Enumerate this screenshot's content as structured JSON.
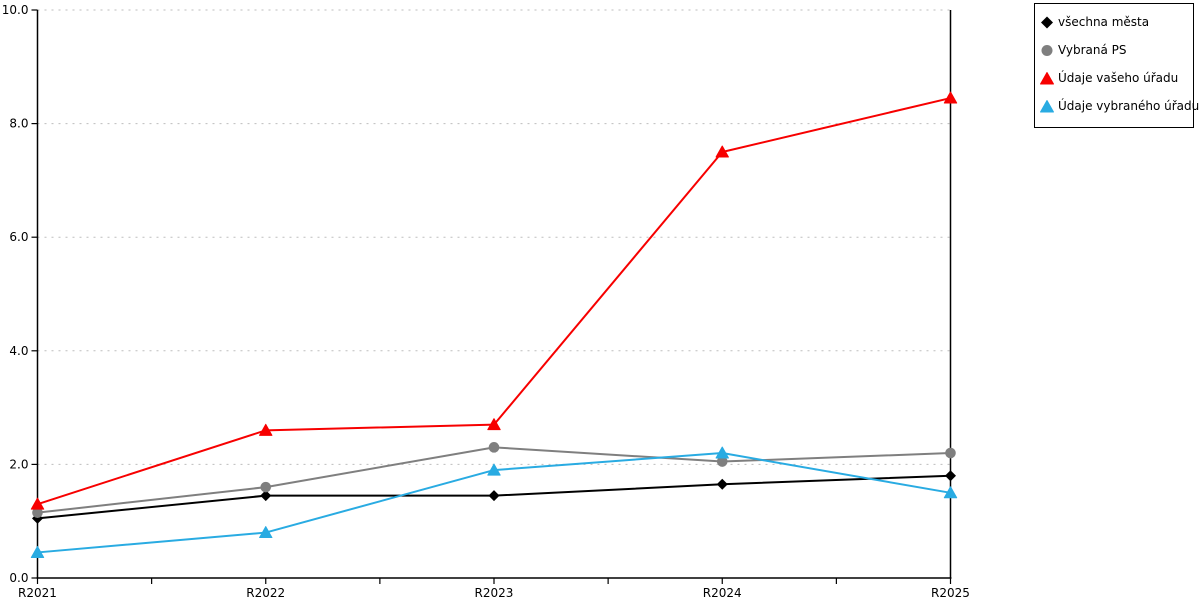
{
  "chart_data": {
    "type": "line",
    "title": "",
    "categories": [
      "R2021",
      "R2022",
      "R2023",
      "R2024",
      "R2025"
    ],
    "ylim": [
      0,
      10
    ],
    "y_tick_step": 2,
    "y_tick_labels": [
      "0.0",
      "2.0",
      "4.0",
      "6.0",
      "8.0",
      "10.0"
    ],
    "grid": "horizontal-dotted",
    "x_minor_ticks_between_categories": true,
    "legend_position": "outside-top-right",
    "series": [
      {
        "name": "všechna města",
        "marker": "diamond",
        "color": "#000000",
        "values": [
          1.05,
          1.45,
          1.45,
          1.65,
          1.8
        ]
      },
      {
        "name": "Vybraná PS",
        "marker": "circle",
        "color": "#7f7f7f",
        "values": [
          1.15,
          1.6,
          2.3,
          2.05,
          2.2
        ]
      },
      {
        "name": "Údaje vašeho úřadu",
        "marker": "triangle",
        "color": "#f70000",
        "values": [
          1.3,
          2.6,
          2.7,
          7.5,
          8.45
        ]
      },
      {
        "name": "Údaje vybraného úřadu",
        "marker": "triangle",
        "color": "#29abe2",
        "values": [
          0.45,
          0.8,
          1.9,
          2.2,
          1.5
        ]
      }
    ]
  },
  "colors": {
    "background": "#ffffff",
    "axis": "#000000",
    "grid": "#bdbdbd"
  }
}
